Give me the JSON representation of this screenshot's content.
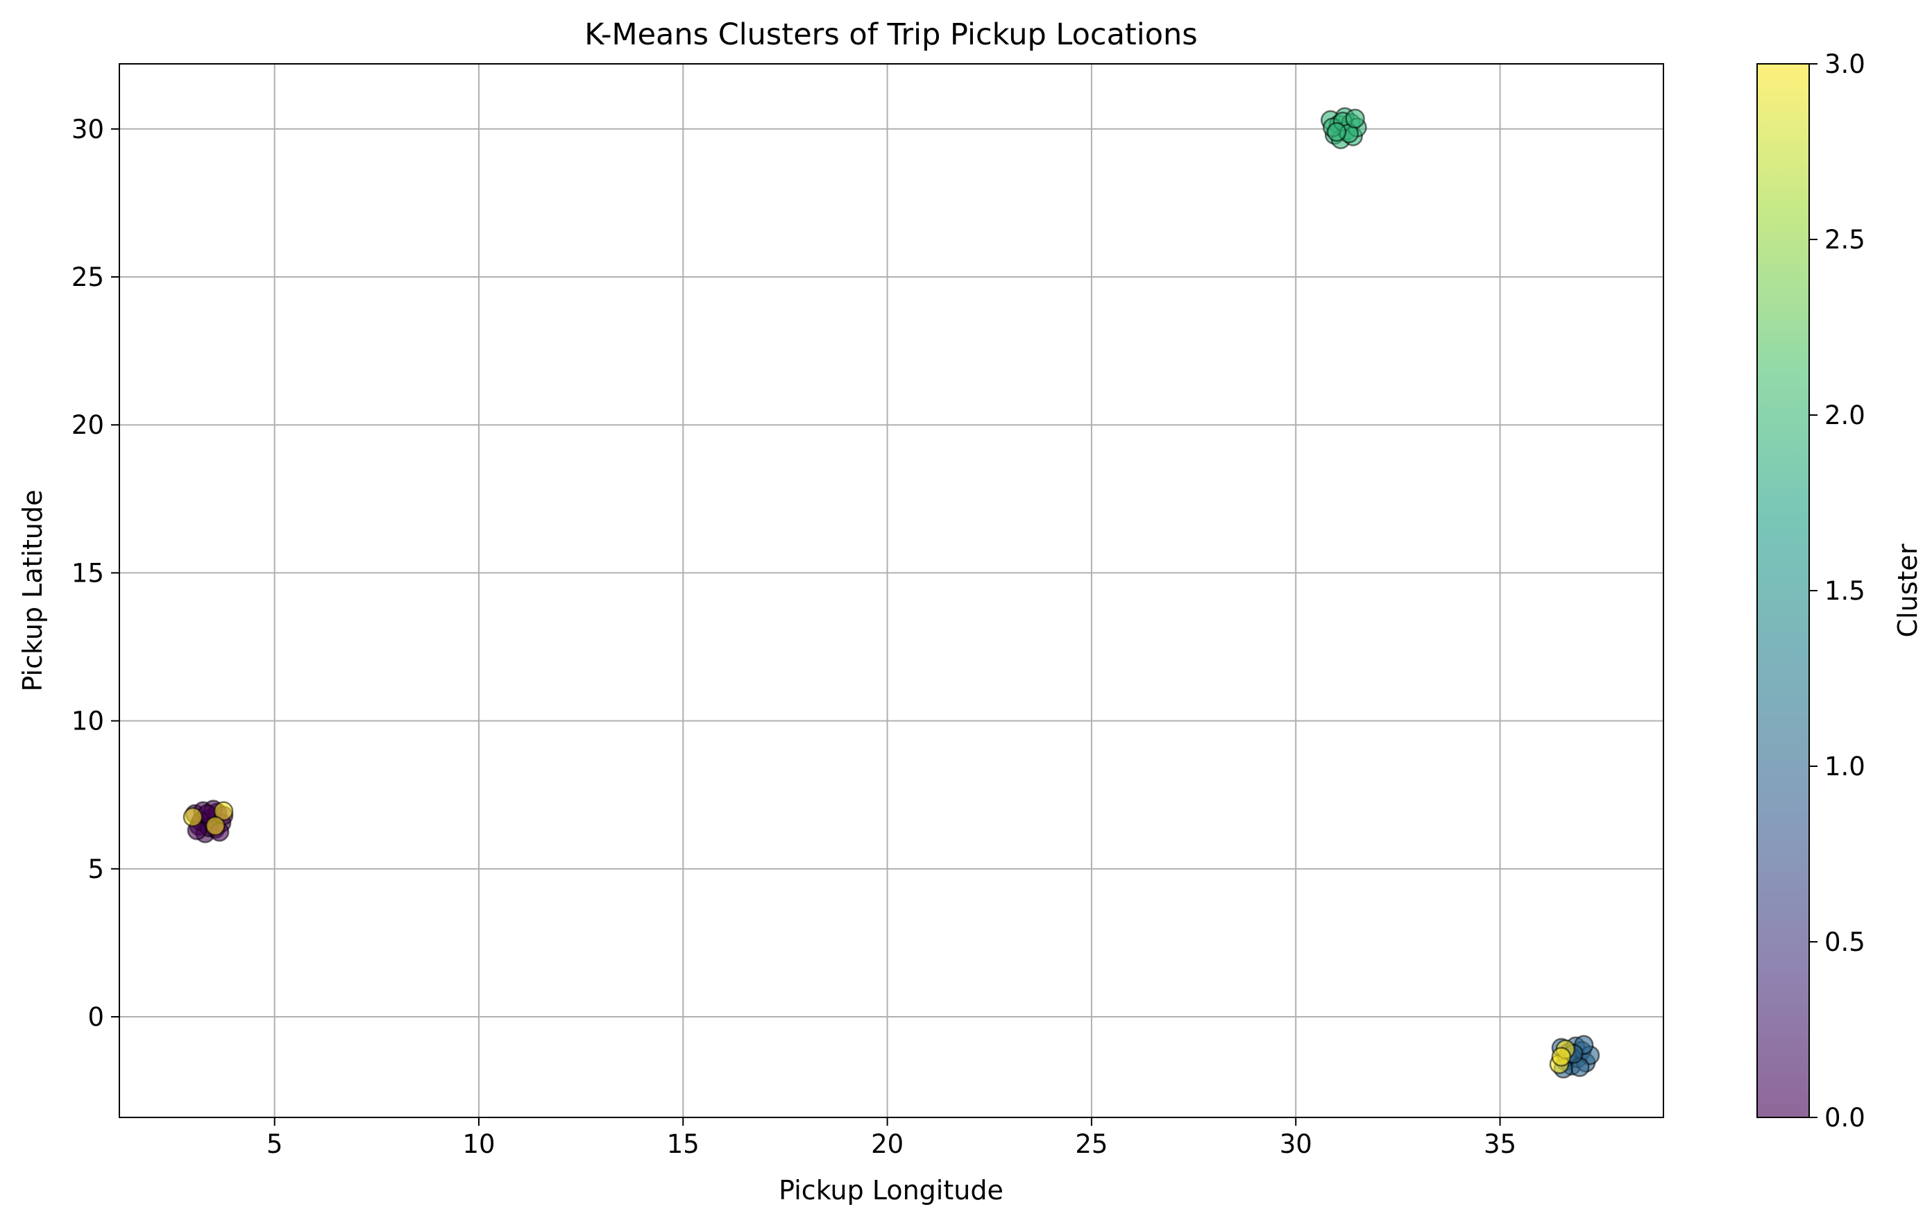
{
  "chart_data": {
    "type": "scatter",
    "title": "K-Means Clusters of Trip Pickup Locations",
    "xlabel": "Pickup Longitude",
    "ylabel": "Pickup Latitude",
    "xlim": [
      1.2,
      39.0
    ],
    "ylim": [
      -3.4,
      32.2
    ],
    "xticks": [
      5,
      10,
      15,
      20,
      25,
      30,
      35
    ],
    "yticks": [
      0,
      5,
      10,
      15,
      20,
      25,
      30
    ],
    "grid": true,
    "colorbar": {
      "label": "Cluster",
      "min": 0.0,
      "max": 3.0,
      "ticks": [
        "0.0",
        "0.5",
        "1.0",
        "1.5",
        "2.0",
        "2.5",
        "3.0"
      ],
      "colormap": "viridis",
      "alpha": 0.6
    },
    "clusters": [
      {
        "cluster": 0,
        "center": [
          3.4,
          6.6
        ],
        "points": [
          [
            3.05,
            6.85
          ],
          [
            3.15,
            6.45
          ],
          [
            3.25,
            6.95
          ],
          [
            3.3,
            6.2
          ],
          [
            3.45,
            6.7
          ],
          [
            3.55,
            6.35
          ],
          [
            3.6,
            6.9
          ],
          [
            3.7,
            6.55
          ],
          [
            3.2,
            6.6
          ],
          [
            3.4,
            6.4
          ],
          [
            3.5,
            7.0
          ],
          [
            3.75,
            6.8
          ],
          [
            3.1,
            6.3
          ],
          [
            3.35,
            6.85
          ],
          [
            3.65,
            6.25
          ]
        ]
      },
      {
        "cluster": 1,
        "center": [
          36.8,
          -1.3
        ],
        "points": [
          [
            36.5,
            -1.05
          ],
          [
            36.6,
            -1.5
          ],
          [
            36.7,
            -1.2
          ],
          [
            36.75,
            -1.65
          ],
          [
            36.85,
            -1.0
          ],
          [
            36.9,
            -1.4
          ],
          [
            37.0,
            -1.15
          ],
          [
            37.1,
            -1.55
          ],
          [
            37.2,
            -1.3
          ],
          [
            36.65,
            -1.35
          ],
          [
            36.95,
            -1.7
          ],
          [
            37.05,
            -0.95
          ],
          [
            36.55,
            -1.75
          ],
          [
            36.8,
            -1.25
          ]
        ]
      },
      {
        "cluster": 2,
        "center": [
          31.2,
          30.05
        ],
        "points": [
          [
            30.85,
            30.3
          ],
          [
            30.95,
            29.8
          ],
          [
            31.05,
            30.15
          ],
          [
            31.1,
            29.65
          ],
          [
            31.2,
            30.4
          ],
          [
            31.25,
            29.95
          ],
          [
            31.35,
            30.2
          ],
          [
            31.4,
            29.75
          ],
          [
            31.5,
            30.05
          ],
          [
            30.9,
            30.05
          ],
          [
            31.15,
            30.25
          ],
          [
            31.3,
            29.85
          ],
          [
            31.45,
            30.35
          ],
          [
            31.0,
            29.9
          ]
        ]
      },
      {
        "cluster": 3,
        "center": [
          3.4,
          6.6
        ],
        "points": [
          [
            3.0,
            6.75
          ],
          [
            3.75,
            6.95
          ],
          [
            3.55,
            6.45
          ],
          [
            36.45,
            -1.6
          ],
          [
            36.6,
            -1.1
          ],
          [
            36.5,
            -1.35
          ]
        ]
      }
    ]
  }
}
